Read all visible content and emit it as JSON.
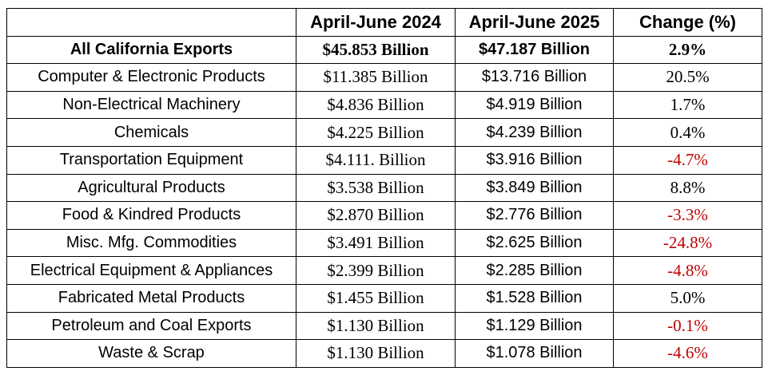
{
  "table": {
    "headers": [
      "",
      "April-June 2024",
      "April-June 2025",
      "Change (%)"
    ],
    "colors": {
      "text": "#000000",
      "negative": "#c00000",
      "border": "#000000"
    },
    "rows": [
      {
        "label": "All California Exports",
        "v2024": "$45.853 Billion",
        "v2025": "$47.187 Billion",
        "change": "2.9%",
        "negative": false,
        "bold": true
      },
      {
        "label": "Computer & Electronic Products",
        "v2024": "$11.385 Billion",
        "v2025": "$13.716 Billion",
        "change": "20.5%",
        "negative": false,
        "bold": false
      },
      {
        "label": "Non-Electrical Machinery",
        "v2024": "$4.836 Billion",
        "v2025": "$4.919 Billion",
        "change": "1.7%",
        "negative": false,
        "bold": false
      },
      {
        "label": "Chemicals",
        "v2024": "$4.225 Billion",
        "v2025": "$4.239 Billion",
        "change": "0.4%",
        "negative": false,
        "bold": false
      },
      {
        "label": "Transportation Equipment",
        "v2024": "$4.111. Billion",
        "v2025": "$3.916 Billion",
        "change": "-4.7%",
        "negative": true,
        "bold": false
      },
      {
        "label": "Agricultural Products",
        "v2024": "$3.538 Billion",
        "v2025": "$3.849 Billion",
        "change": "8.8%",
        "negative": false,
        "bold": false
      },
      {
        "label": "Food & Kindred Products",
        "v2024": "$2.870 Billion",
        "v2025": "$2.776 Billion",
        "change": "-3.3%",
        "negative": true,
        "bold": false
      },
      {
        "label": "Misc. Mfg. Commodities",
        "v2024": "$3.491 Billion",
        "v2025": "$2.625 Billion",
        "change": "-24.8%",
        "negative": true,
        "bold": false
      },
      {
        "label": "Electrical Equipment & Appliances",
        "v2024": "$2.399 Billion",
        "v2025": "$2.285 Billion",
        "change": "-4.8%",
        "negative": true,
        "bold": false
      },
      {
        "label": "Fabricated Metal Products",
        "v2024": "$1.455 Billion",
        "v2025": "$1.528 Billion",
        "change": "5.0%",
        "negative": false,
        "bold": false
      },
      {
        "label": "Petroleum and Coal Exports",
        "v2024": "$1.130 Billion",
        "v2025": "$1.129 Billion",
        "change": "-0.1%",
        "negative": true,
        "bold": false
      },
      {
        "label": "Waste & Scrap",
        "v2024": "$1.130 Billion",
        "v2025": "$1.078 Billion",
        "change": "-4.6%",
        "negative": true,
        "bold": false
      }
    ]
  }
}
